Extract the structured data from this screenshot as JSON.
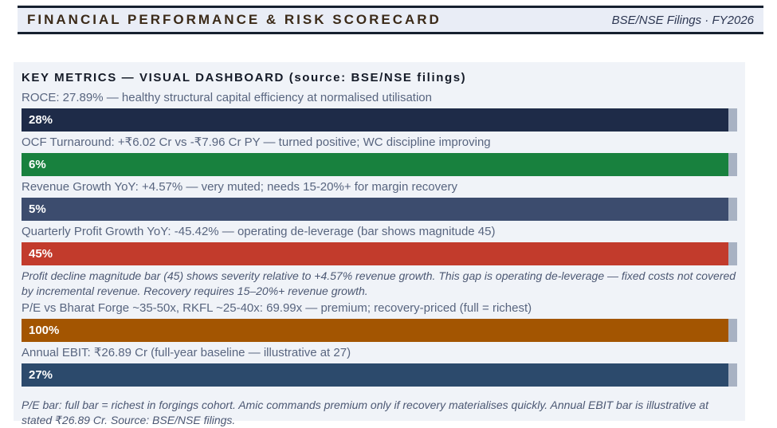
{
  "header": {
    "title": "FINANCIAL PERFORMANCE & RISK SCORECARD",
    "subtitle": "BSE/NSE Filings · FY2026"
  },
  "panel": {
    "title": "KEY METRICS — VISUAL DASHBOARD  (source: BSE/NSE filings)",
    "metrics": [
      {
        "label": "ROCE: 27.89% — healthy structural capital efficiency at normalised utilisation",
        "value_label": "28%",
        "bar_color": "#1e2b48",
        "fill_pct": 98.8,
        "note": null
      },
      {
        "label": "OCF Turnaround: +₹6.02 Cr vs -₹7.96 Cr PY — turned positive; WC discipline improving",
        "value_label": "6%",
        "bar_color": "#18813e",
        "fill_pct": 98.8,
        "note": null
      },
      {
        "label": "Revenue Growth YoY: +4.57% — very muted; needs 15-20%+ for margin recovery",
        "value_label": "5%",
        "bar_color": "#3c4c6e",
        "fill_pct": 98.8,
        "note": null
      },
      {
        "label": "Quarterly Profit Growth YoY: -45.42% — operating de-leverage (bar shows magnitude 45)",
        "value_label": "45%",
        "bar_color": "#c23b2c",
        "fill_pct": 98.8,
        "note": "Profit decline magnitude bar (45) shows severity relative to +4.57% revenue growth. This gap is operating de-leverage — fixed costs not covered by incremental revenue. Recovery requires 15–20%+ revenue growth."
      },
      {
        "label": "P/E vs Bharat Forge ~35-50x, RKFL ~25-40x: 69.99x — premium; recovery-priced (full = richest)",
        "value_label": "100%",
        "bar_color": "#a35501",
        "fill_pct": 98.8,
        "note": null
      },
      {
        "label": "Annual EBIT: ₹26.89 Cr (full-year baseline — illustrative at 27)",
        "value_label": "27%",
        "bar_color": "#2c4a6c",
        "fill_pct": 98.8,
        "note": null
      }
    ],
    "footer_note": "P/E bar: full bar = richest in forgings cohort. Amic commands premium only if recovery materialises quickly. Annual EBIT bar is illustrative at stated ₹26.89 Cr. Source: BSE/NSE filings.",
    "track_color": "#a8b2c3"
  },
  "chart_data": {
    "type": "bar",
    "orientation": "horizontal",
    "title": "KEY METRICS — VISUAL DASHBOARD",
    "source": "BSE/NSE filings",
    "categories": [
      "ROCE",
      "OCF Turnaround",
      "Revenue Growth YoY",
      "Quarterly Profit Growth YoY (magnitude)",
      "P/E 69.99x (full = richest)",
      "Annual EBIT (illustrative)"
    ],
    "values": [
      28,
      6,
      5,
      45,
      100,
      27
    ],
    "value_labels": [
      "28%",
      "6%",
      "5%",
      "45%",
      "100%",
      "27%"
    ],
    "actual_metric_values": [
      "27.89%",
      "+₹6.02 Cr vs -₹7.96 Cr PY",
      "+4.57%",
      "-45.42%",
      "69.99x",
      "₹26.89 Cr"
    ],
    "bar_colors": [
      "#1e2b48",
      "#18813e",
      "#3c4c6e",
      "#c23b2c",
      "#a35501",
      "#2c4a6c"
    ],
    "xlim": [
      0,
      100
    ],
    "grid": false,
    "legend": false
  }
}
